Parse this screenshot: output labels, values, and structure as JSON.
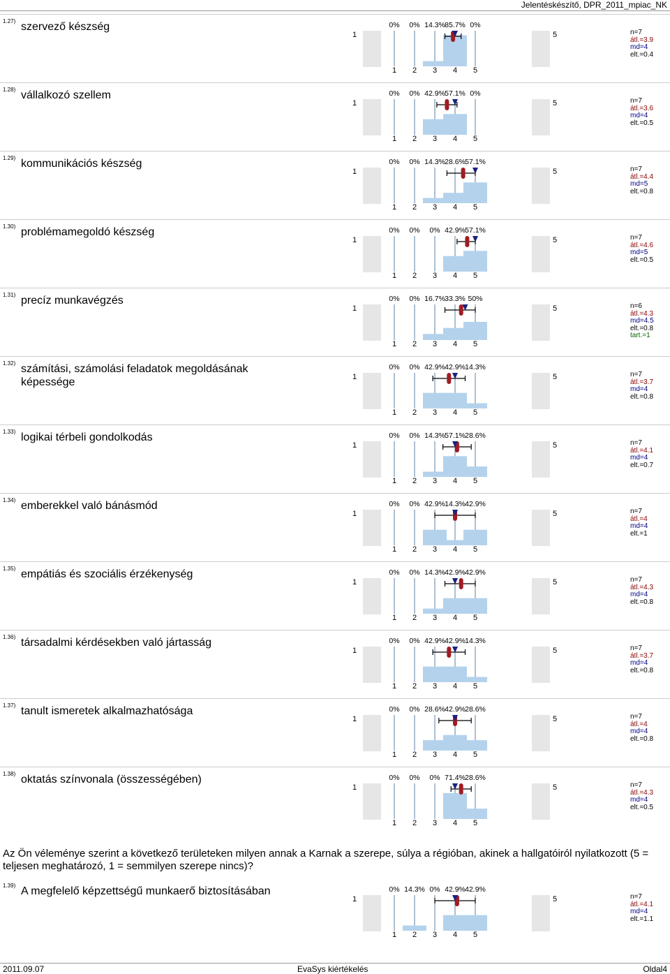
{
  "header": {
    "title": "Jelentéskészítő, DPR_2011_mpiac_NK"
  },
  "scale": {
    "low": "1",
    "high": "5",
    "ticks": [
      "1",
      "2",
      "3",
      "4",
      "5"
    ]
  },
  "items": [
    {
      "num": "1.27)",
      "label": "szervező készség",
      "pct": [
        "0%",
        "0%",
        "14.3%",
        "85.7%",
        "0%"
      ],
      "vals": [
        0,
        0,
        14.3,
        85.7,
        0
      ],
      "mean": 3.9,
      "median": 4,
      "sd": 0.4,
      "stats": [
        "n=7",
        "átl.=3.9",
        "md=4",
        "elt.=0.4"
      ]
    },
    {
      "num": "1.28)",
      "label": "vállalkozó szellem",
      "pct": [
        "0%",
        "0%",
        "42.9%",
        "57.1%",
        "0%"
      ],
      "vals": [
        0,
        0,
        42.9,
        57.1,
        0
      ],
      "mean": 3.6,
      "median": 4,
      "sd": 0.5,
      "stats": [
        "n=7",
        "átl.=3.6",
        "md=4",
        "elt.=0.5"
      ]
    },
    {
      "num": "1.29)",
      "label": "kommunikációs készség",
      "pct": [
        "0%",
        "0%",
        "14.3%",
        "28.6%",
        "57.1%"
      ],
      "vals": [
        0,
        0,
        14.3,
        28.6,
        57.1
      ],
      "mean": 4.4,
      "median": 5,
      "sd": 0.8,
      "stats": [
        "n=7",
        "átl.=4.4",
        "md=5",
        "elt.=0.8"
      ]
    },
    {
      "num": "1.30)",
      "label": "problémamegoldó készség",
      "pct": [
        "0%",
        "0%",
        "0%",
        "42.9%",
        "57.1%"
      ],
      "vals": [
        0,
        0,
        0,
        42.9,
        57.1
      ],
      "mean": 4.6,
      "median": 5,
      "sd": 0.5,
      "stats": [
        "n=7",
        "átl.=4.6",
        "md=5",
        "elt.=0.5"
      ]
    },
    {
      "num": "1.31)",
      "label": "precíz munkavégzés",
      "pct": [
        "0%",
        "0%",
        "16.7%",
        "33.3%",
        "50%"
      ],
      "vals": [
        0,
        0,
        16.7,
        33.3,
        50
      ],
      "mean": 4.3,
      "median": 4.5,
      "sd": 0.8,
      "stats": [
        "n=6",
        "átl.=4.3",
        "md=4.5",
        "elt.=0.8",
        "tart.=1"
      ]
    },
    {
      "num": "1.32)",
      "label": "számítási, számolási feladatok megoldásának képessége",
      "pct": [
        "0%",
        "0%",
        "42.9%",
        "42.9%",
        "14.3%"
      ],
      "vals": [
        0,
        0,
        42.9,
        42.9,
        14.3
      ],
      "mean": 3.7,
      "median": 4,
      "sd": 0.8,
      "stats": [
        "n=7",
        "átl.=3.7",
        "md=4",
        "elt.=0.8"
      ]
    },
    {
      "num": "1.33)",
      "label": "logikai térbeli gondolkodás",
      "pct": [
        "0%",
        "0%",
        "14.3%",
        "57.1%",
        "28.6%"
      ],
      "vals": [
        0,
        0,
        14.3,
        57.1,
        28.6
      ],
      "mean": 4.1,
      "median": 4,
      "sd": 0.7,
      "stats": [
        "n=7",
        "átl.=4.1",
        "md=4",
        "elt.=0.7"
      ]
    },
    {
      "num": "1.34)",
      "label": "emberekkel való bánásmód",
      "pct": [
        "0%",
        "0%",
        "42.9%",
        "14.3%",
        "42.9%"
      ],
      "vals": [
        0,
        0,
        42.9,
        14.3,
        42.9
      ],
      "mean": 4,
      "median": 4,
      "sd": 1,
      "stats": [
        "n=7",
        "átl.=4",
        "md=4",
        "elt.=1"
      ]
    },
    {
      "num": "1.35)",
      "label": "empátiás és szociális érzékenység",
      "pct": [
        "0%",
        "0%",
        "14.3%",
        "42.9%",
        "42.9%"
      ],
      "vals": [
        0,
        0,
        14.3,
        42.9,
        42.9
      ],
      "mean": 4.3,
      "median": 4,
      "sd": 0.8,
      "stats": [
        "n=7",
        "átl.=4.3",
        "md=4",
        "elt.=0.8"
      ]
    },
    {
      "num": "1.36)",
      "label": "társadalmi kérdésekben való jártasság",
      "pct": [
        "0%",
        "0%",
        "42.9%",
        "42.9%",
        "14.3%"
      ],
      "vals": [
        0,
        0,
        42.9,
        42.9,
        14.3
      ],
      "mean": 3.7,
      "median": 4,
      "sd": 0.8,
      "stats": [
        "n=7",
        "átl.=3.7",
        "md=4",
        "elt.=0.8"
      ]
    },
    {
      "num": "1.37)",
      "label": "tanult ismeretek alkalmazhatósága",
      "pct": [
        "0%",
        "0%",
        "28.6%",
        "42.9%",
        "28.6%"
      ],
      "vals": [
        0,
        0,
        28.6,
        42.9,
        28.6
      ],
      "mean": 4,
      "median": 4,
      "sd": 0.8,
      "stats": [
        "n=7",
        "átl.=4",
        "md=4",
        "elt.=0.8"
      ]
    },
    {
      "num": "1.38)",
      "label": "oktatás színvonala (összességében)",
      "pct": [
        "0%",
        "0%",
        "0%",
        "71.4%",
        "28.6%"
      ],
      "vals": [
        0,
        0,
        0,
        71.4,
        28.6
      ],
      "mean": 4.3,
      "median": 4,
      "sd": 0.5,
      "stats": [
        "n=7",
        "átl.=4.3",
        "md=4",
        "elt.=0.5"
      ]
    },
    {
      "num": "1.39)",
      "label": "A megfelelő képzettségű munkaerő biztosításában",
      "pct": [
        "0%",
        "14.3%",
        "0%",
        "42.9%",
        "42.9%"
      ],
      "vals": [
        0,
        14.3,
        0,
        42.9,
        42.9
      ],
      "mean": 4.1,
      "median": 4,
      "sd": 1.1,
      "stats": [
        "n=7",
        "átl.=4.1",
        "md=4",
        "elt.=1.1"
      ]
    }
  ],
  "intro": "Az Ön véleménye szerint a következő területeken milyen annak a Karnak a szerepe, súlya a régióban, akinek a hallgatóiról nyilatkozott (5 = teljesen meghatározó, 1 = semmilyen szerepe nincs)?",
  "footer": {
    "date": "2011.09.07",
    "center": "EvaSys kiértékelés",
    "page": "Oldal4"
  },
  "colors": {
    "bar": "#b4d2ec",
    "grey": "#e6e6e6",
    "mean": "#a01c24",
    "median": "#1a237e"
  }
}
